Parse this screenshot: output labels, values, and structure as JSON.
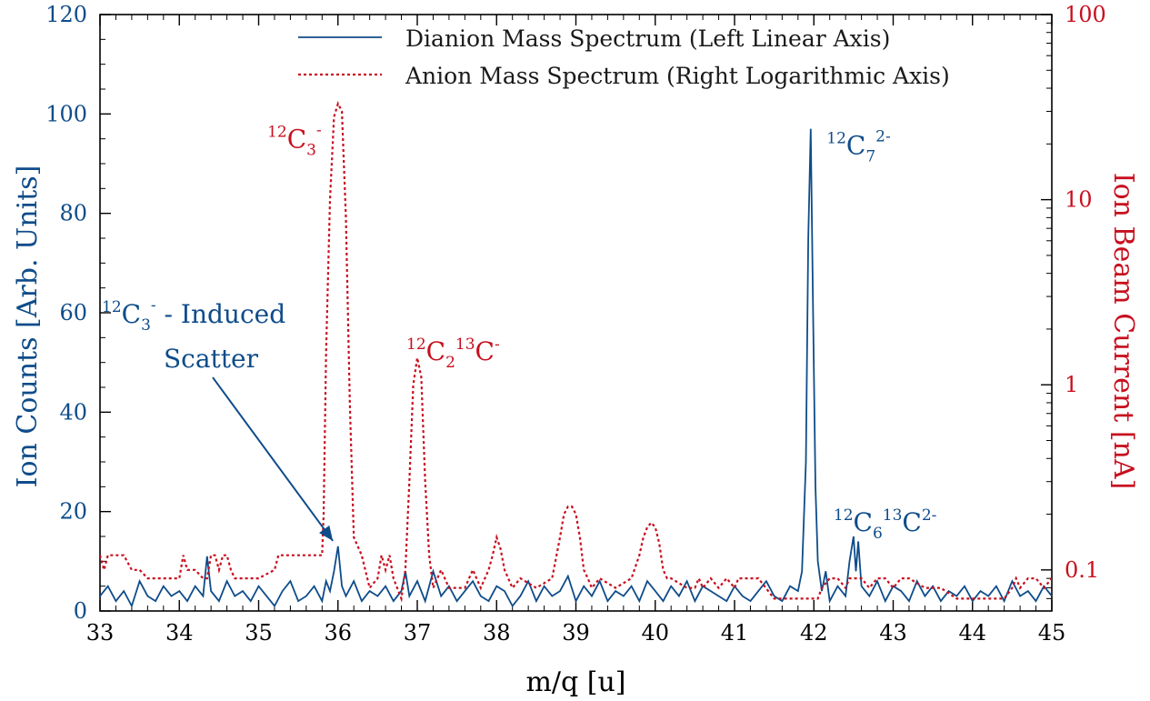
{
  "chart_data": {
    "type": "line",
    "xlabel": "m/q [u]",
    "ylabel_left": "Ion Counts [Arb. Units]",
    "ylabel_right": "Ion Beam Current [nA]",
    "xlim": [
      33,
      45
    ],
    "ylim_left": [
      0,
      120
    ],
    "ylim_right": [
      0.06,
      100
    ],
    "right_scale": "log",
    "x_ticks": [
      "33",
      "34",
      "35",
      "36",
      "37",
      "38",
      "39",
      "40",
      "41",
      "42",
      "43",
      "44",
      "45"
    ],
    "y_left_ticks": [
      "0",
      "20",
      "40",
      "60",
      "80",
      "100",
      "120"
    ],
    "y_right_ticks": [
      "0.1",
      "1",
      "10",
      "100"
    ],
    "legend_position": "top-right",
    "colors": {
      "dianion": "#0e4c8a",
      "anion": "#c80f1e"
    },
    "series": [
      {
        "name": "Dianion Mass Spectrum (Left Linear Axis)",
        "axis": "left",
        "style": "solid",
        "x": [
          33.0,
          33.1,
          33.2,
          33.3,
          33.4,
          33.5,
          33.6,
          33.7,
          33.8,
          33.9,
          34.0,
          34.1,
          34.2,
          34.3,
          34.35,
          34.4,
          34.5,
          34.6,
          34.7,
          34.8,
          34.9,
          35.0,
          35.1,
          35.2,
          35.3,
          35.4,
          35.5,
          35.6,
          35.7,
          35.8,
          35.85,
          35.9,
          35.95,
          36.0,
          36.05,
          36.1,
          36.2,
          36.3,
          36.4,
          36.5,
          36.6,
          36.7,
          36.8,
          36.85,
          36.9,
          37.0,
          37.1,
          37.2,
          37.3,
          37.4,
          37.5,
          37.6,
          37.7,
          37.8,
          37.9,
          38.0,
          38.1,
          38.2,
          38.3,
          38.4,
          38.5,
          38.6,
          38.7,
          38.8,
          38.9,
          39.0,
          39.1,
          39.2,
          39.3,
          39.4,
          39.5,
          39.6,
          39.7,
          39.8,
          39.9,
          40.0,
          40.1,
          40.2,
          40.3,
          40.4,
          40.5,
          40.6,
          40.7,
          40.8,
          40.9,
          41.0,
          41.1,
          41.2,
          41.3,
          41.4,
          41.5,
          41.6,
          41.7,
          41.8,
          41.85,
          41.9,
          41.93,
          41.96,
          41.99,
          42.02,
          42.05,
          42.1,
          42.15,
          42.2,
          42.3,
          42.4,
          42.45,
          42.5,
          42.53,
          42.56,
          42.6,
          42.7,
          42.8,
          42.9,
          43.0,
          43.1,
          43.2,
          43.3,
          43.4,
          43.5,
          43.6,
          43.7,
          43.8,
          43.9,
          44.0,
          44.1,
          44.2,
          44.3,
          44.4,
          44.5,
          44.6,
          44.7,
          44.8,
          44.9,
          45.0
        ],
        "y": [
          3,
          5,
          2,
          4,
          1,
          6,
          3,
          2,
          5,
          3,
          4,
          2,
          5,
          3,
          11,
          4,
          2,
          6,
          3,
          4,
          2,
          5,
          3,
          1,
          4,
          6,
          2,
          3,
          5,
          2,
          6,
          4,
          8,
          13,
          5,
          3,
          6,
          2,
          4,
          3,
          5,
          2,
          4,
          8,
          3,
          6,
          2,
          8,
          3,
          5,
          2,
          4,
          6,
          3,
          2,
          5,
          4,
          1,
          3,
          6,
          2,
          5,
          3,
          4,
          7,
          2,
          5,
          3,
          6,
          2,
          4,
          3,
          5,
          2,
          6,
          4,
          2,
          5,
          3,
          6,
          2,
          5,
          4,
          3,
          2,
          5,
          3,
          2,
          4,
          6,
          3,
          2,
          5,
          4,
          8,
          30,
          75,
          97,
          60,
          25,
          10,
          4,
          8,
          2,
          5,
          3,
          10,
          15,
          8,
          14,
          5,
          3,
          6,
          2,
          5,
          4,
          2,
          6,
          3,
          5,
          2,
          4,
          3,
          5,
          2,
          4,
          3,
          5,
          2,
          6,
          3,
          4,
          2,
          5,
          3
        ]
      },
      {
        "name": "Anion Mass Spectrum (Right Logarithmic Axis)",
        "axis": "right",
        "style": "dotted",
        "x": [
          33.0,
          33.05,
          33.1,
          33.15,
          33.2,
          33.3,
          33.4,
          33.5,
          33.6,
          34.0,
          34.05,
          34.1,
          34.2,
          34.3,
          34.35,
          34.4,
          34.45,
          34.5,
          34.55,
          34.6,
          34.65,
          34.7,
          34.8,
          35.0,
          35.2,
          35.25,
          35.3,
          35.4,
          35.5,
          35.7,
          35.8,
          35.82,
          35.85,
          35.9,
          35.95,
          36.0,
          36.05,
          36.1,
          36.15,
          36.2,
          36.3,
          36.4,
          36.5,
          36.55,
          36.6,
          36.65,
          36.7,
          36.8,
          36.85,
          36.9,
          36.95,
          37.0,
          37.05,
          37.1,
          37.15,
          37.2,
          37.3,
          37.4,
          37.5,
          37.6,
          37.7,
          37.8,
          37.9,
          37.95,
          38.0,
          38.05,
          38.1,
          38.2,
          38.3,
          38.5,
          38.7,
          38.8,
          38.85,
          38.9,
          38.95,
          39.0,
          39.05,
          39.1,
          39.15,
          39.2,
          39.3,
          39.5,
          39.7,
          39.8,
          39.85,
          39.9,
          39.95,
          40.0,
          40.05,
          40.1,
          40.15,
          40.2,
          40.4,
          40.5,
          40.55,
          40.6,
          40.7,
          40.8,
          40.9,
          41.0,
          41.05,
          41.1,
          41.3,
          41.5,
          41.7,
          41.9,
          42.0,
          42.05,
          42.1,
          42.2,
          42.3,
          42.4,
          42.45,
          42.5,
          42.55,
          42.6,
          42.7,
          42.8,
          42.9,
          43.0,
          43.1,
          43.2,
          43.4,
          43.6,
          43.8,
          44.0,
          44.2,
          44.4,
          44.5,
          44.55,
          44.6,
          44.7,
          44.8,
          44.9,
          45.0
        ],
        "y": [
          0.12,
          0.1,
          0.12,
          0.12,
          0.12,
          0.12,
          0.1,
          0.1,
          0.09,
          0.09,
          0.12,
          0.1,
          0.1,
          0.09,
          0.09,
          0.12,
          0.12,
          0.1,
          0.12,
          0.12,
          0.1,
          0.09,
          0.09,
          0.09,
          0.1,
          0.12,
          0.12,
          0.12,
          0.12,
          0.12,
          0.12,
          0.2,
          1.5,
          10,
          28,
          33,
          30,
          8,
          0.8,
          0.15,
          0.12,
          0.08,
          0.09,
          0.12,
          0.1,
          0.12,
          0.09,
          0.07,
          0.1,
          0.3,
          1,
          1.4,
          1.1,
          0.3,
          0.12,
          0.08,
          0.1,
          0.08,
          0.08,
          0.08,
          0.1,
          0.08,
          0.1,
          0.12,
          0.15,
          0.13,
          0.1,
          0.08,
          0.09,
          0.08,
          0.09,
          0.15,
          0.2,
          0.22,
          0.22,
          0.2,
          0.15,
          0.1,
          0.09,
          0.08,
          0.09,
          0.08,
          0.09,
          0.12,
          0.15,
          0.17,
          0.18,
          0.17,
          0.14,
          0.1,
          0.09,
          0.09,
          0.08,
          0.08,
          0.09,
          0.08,
          0.09,
          0.08,
          0.09,
          0.08,
          0.09,
          0.09,
          0.09,
          0.07,
          0.07,
          0.07,
          0.07,
          0.07,
          0.08,
          0.09,
          0.09,
          0.08,
          0.09,
          0.09,
          0.09,
          0.09,
          0.08,
          0.09,
          0.09,
          0.08,
          0.09,
          0.09,
          0.08,
          0.08,
          0.07,
          0.07,
          0.07,
          0.07,
          0.08,
          0.09,
          0.08,
          0.09,
          0.09,
          0.08,
          0.09
        ]
      }
    ],
    "annotations": [
      {
        "id": "c3",
        "base": "C",
        "pre": "12",
        "sub": "3",
        "sup": "-",
        "x": 36.0,
        "axis": "right",
        "y": 30,
        "color": "anion"
      },
      {
        "id": "c2c13",
        "base": "C",
        "pre": "12",
        "sub": "2",
        "sup": "",
        "base2": "C",
        "pre2": "13",
        "sup2": "-",
        "x": 37.0,
        "axis": "right",
        "y": 1.3,
        "color": "anion"
      },
      {
        "id": "c7",
        "base": "C",
        "pre": "12",
        "sub": "7",
        "sup": "2-",
        "x": 42.0,
        "axis": "left",
        "y": 97,
        "color": "dianion"
      },
      {
        "id": "c6c13",
        "base": "C",
        "pre": "12",
        "sub": "6",
        "sup": "",
        "base2": "C",
        "pre2": "13",
        "sup2": "2-",
        "x": 42.5,
        "axis": "left",
        "y": 15,
        "color": "dianion"
      },
      {
        "id": "scatter",
        "base": "C",
        "pre": "12",
        "sub": "3",
        "sup": "-",
        "trail": " - Induced",
        "line2": "Scatter",
        "x": 35.97,
        "axis": "left",
        "y": 13,
        "color": "dianion"
      }
    ]
  }
}
